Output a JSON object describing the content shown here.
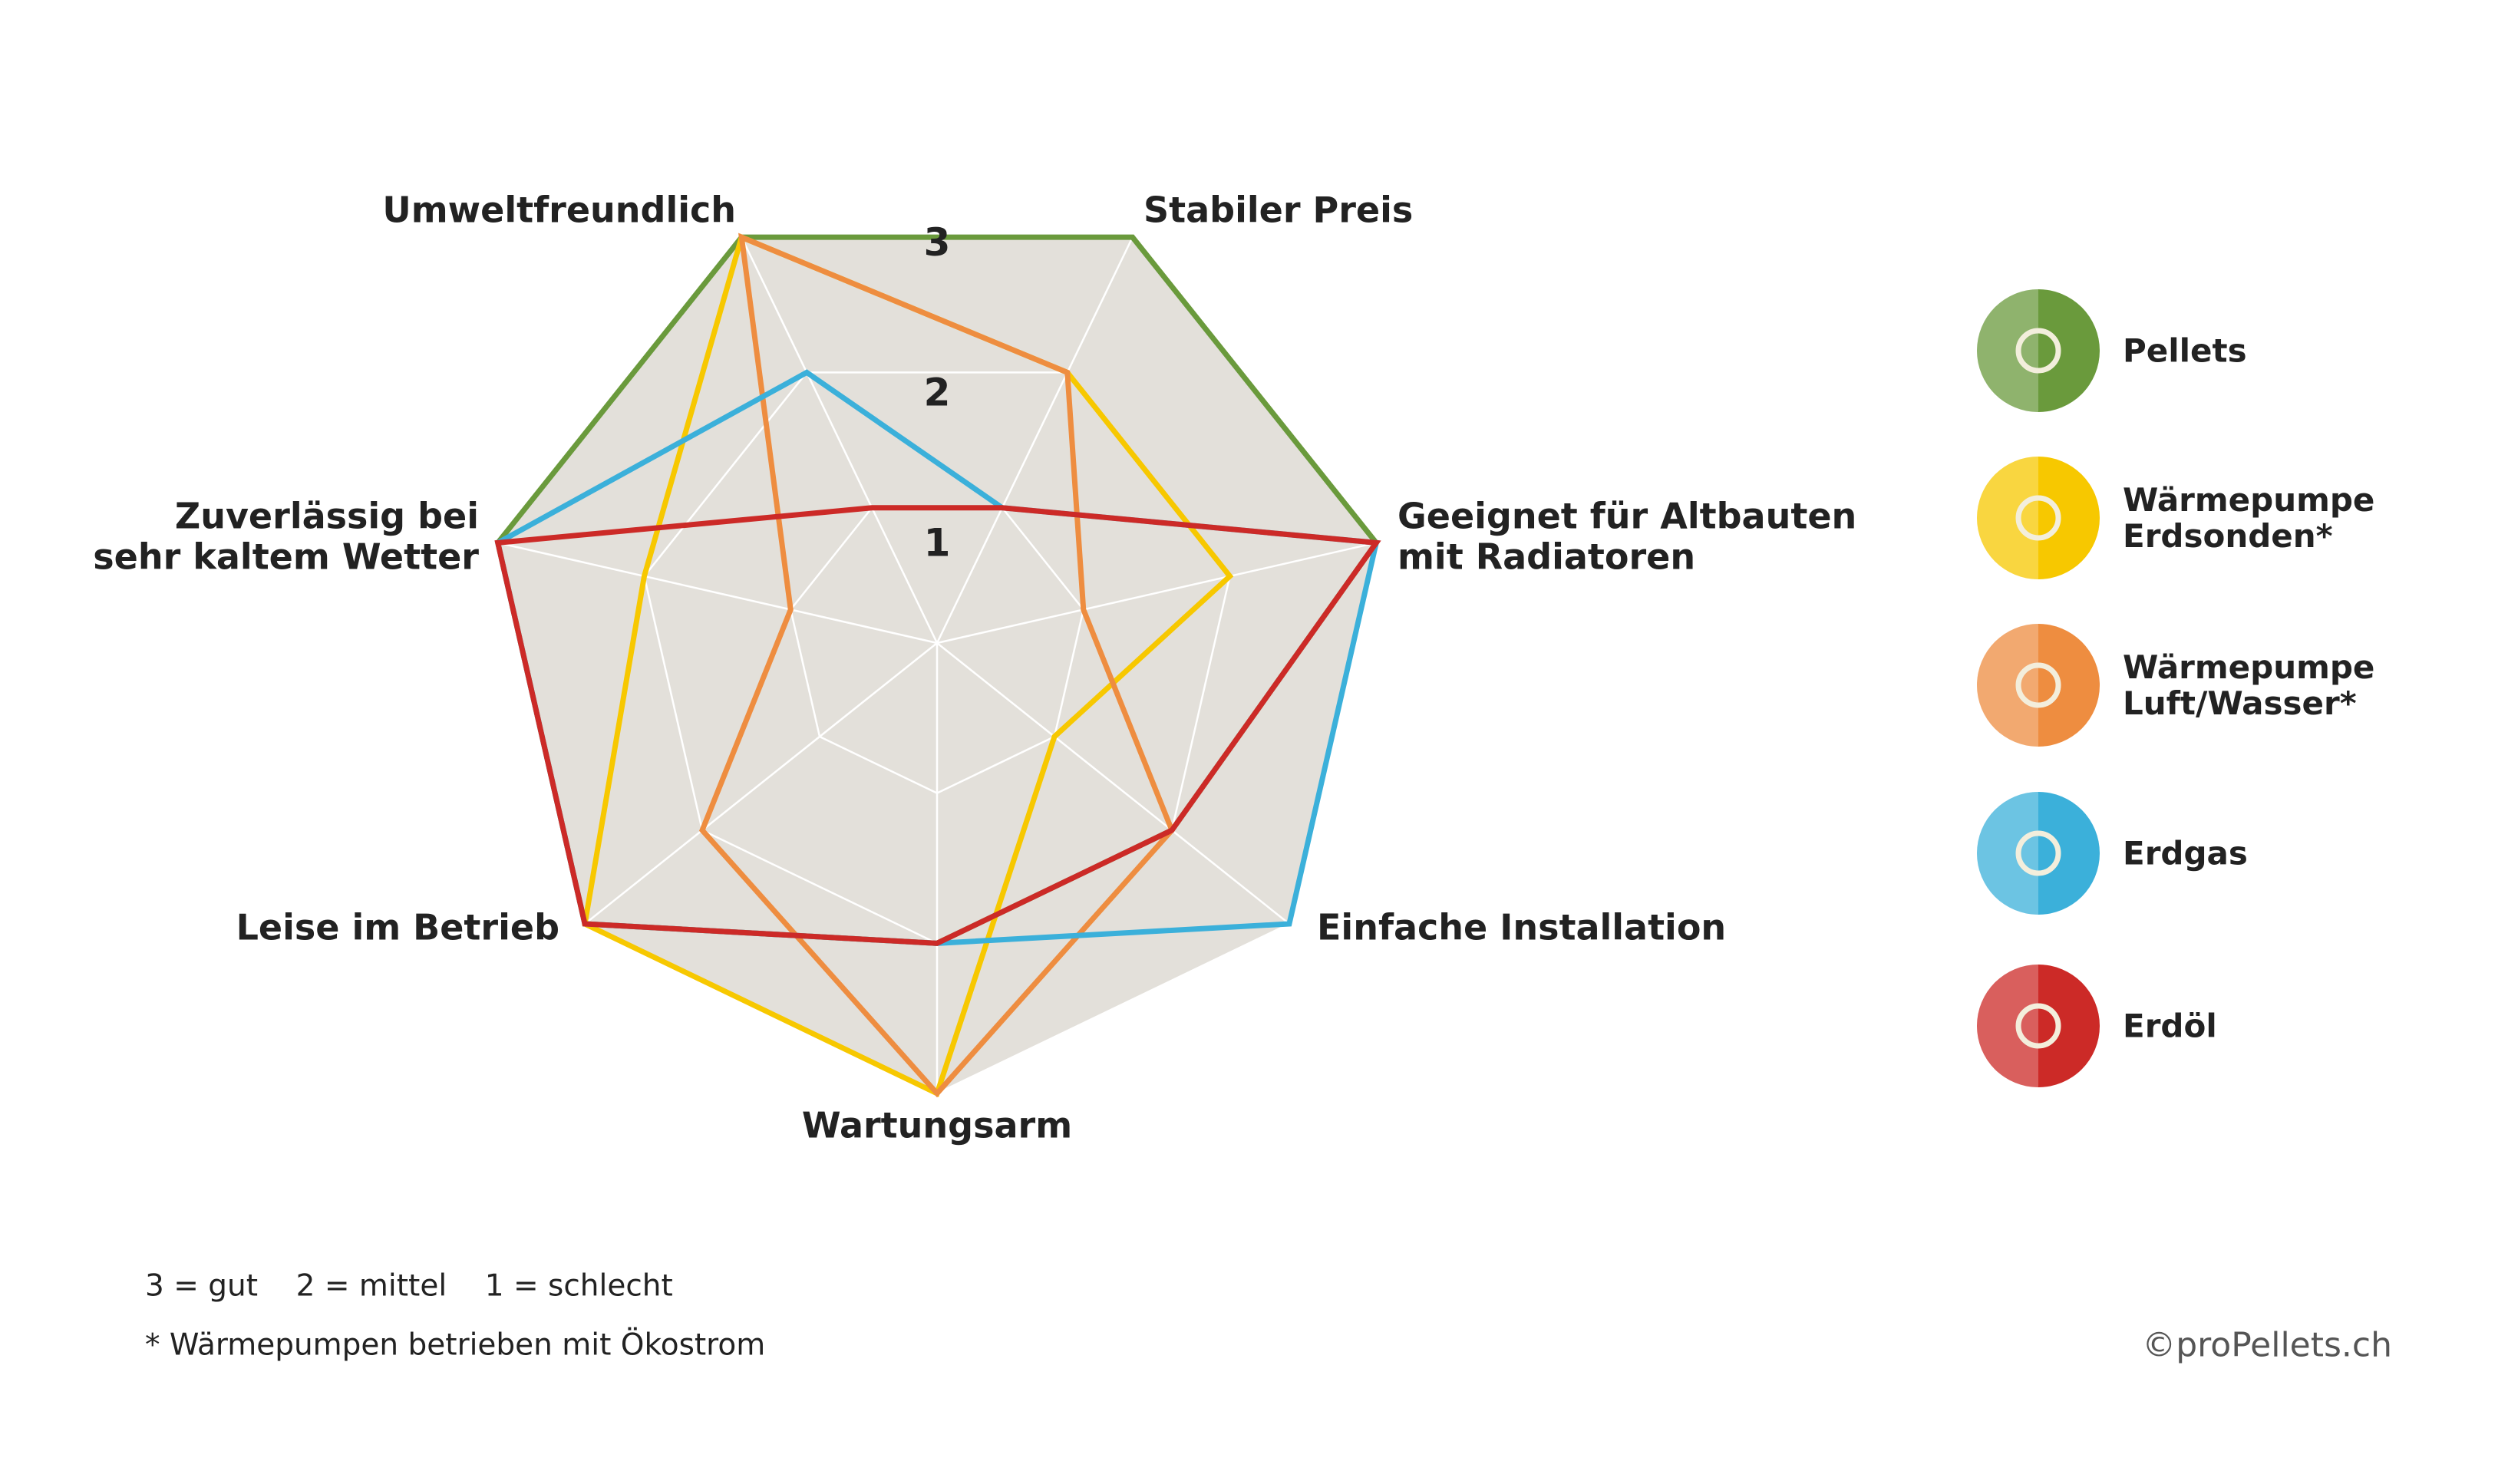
{
  "chart_data": {
    "type": "radar",
    "categories": [
      "Umweltfreundlich",
      "Stabiler Preis",
      "Geeignet für Altbauten\nmit Radiatoren",
      "Einfache Installation",
      "Wartungsarm",
      "Leise im Betrieb",
      "Zuverlässig bei\nsehr kaltem Wetter"
    ],
    "rlim": [
      0,
      3
    ],
    "rticks": [
      1,
      2,
      3
    ],
    "grid": true,
    "legend": "right",
    "series": [
      {
        "name": "Pellets",
        "color": "#6a9a3c",
        "values": [
          3,
          3,
          3,
          2,
          2,
          3,
          3
        ]
      },
      {
        "name": "Wärmepumpe\nErdsonden*",
        "color": "#f7c800",
        "values": [
          3,
          2,
          2,
          1,
          3,
          3,
          2
        ]
      },
      {
        "name": "Wärmepumpe\nLuft/Wasser*",
        "color": "#ee8d40",
        "values": [
          3,
          2,
          1,
          2,
          3,
          2,
          1
        ]
      },
      {
        "name": "Erdgas",
        "color": "#3bb0da",
        "values": [
          2,
          1,
          3,
          3,
          2,
          3,
          3
        ]
      },
      {
        "name": "Erdöl",
        "color": "#cc2a27",
        "values": [
          1,
          1,
          3,
          2,
          2,
          3,
          3
        ]
      }
    ],
    "scale_note": "3 = gut    2 = mittel    1 = schlecht",
    "footnote": "* Wärmepumpen betrieben mit Ökostrom",
    "credit": "©proPellets.ch"
  }
}
